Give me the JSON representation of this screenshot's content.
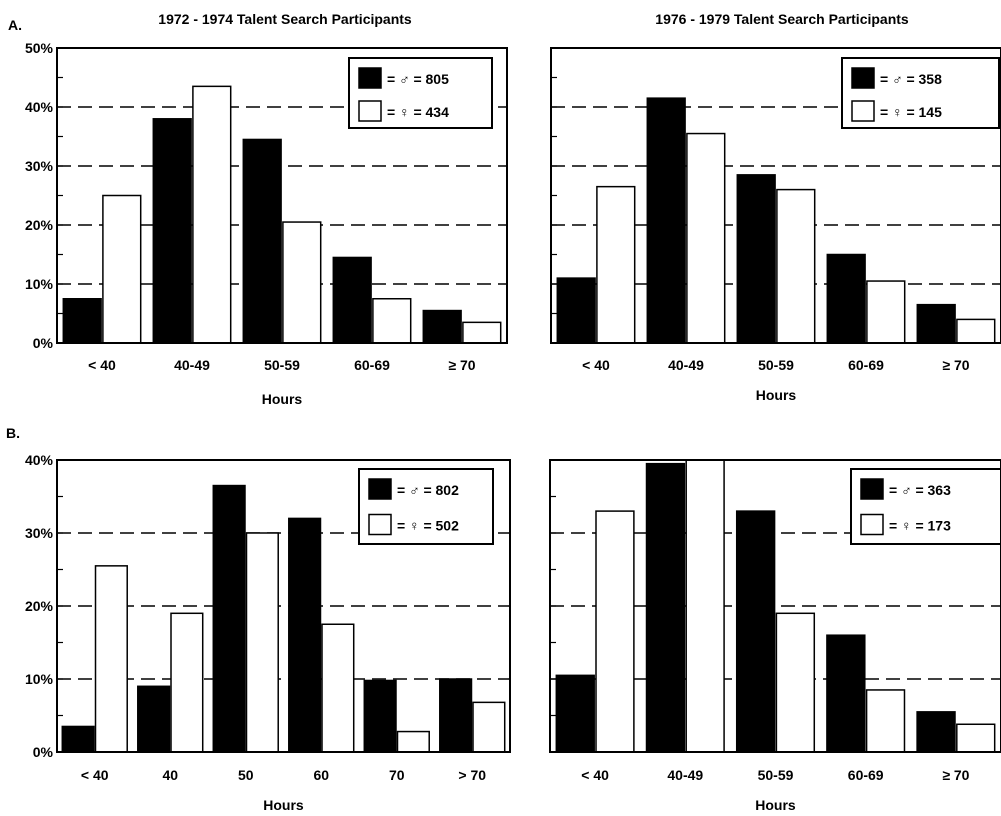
{
  "figure": {
    "panel_labels": [
      "A.",
      "B."
    ]
  },
  "chart_data": [
    {
      "type": "bar",
      "panel": "A.",
      "title": "1972 - 1974 Talent Search Participants",
      "xlabel": "Hours",
      "ylabel": "",
      "ylim": [
        0,
        50
      ],
      "yticks": [
        "0%",
        "10%",
        "20%",
        "30%",
        "40%",
        "50%"
      ],
      "categories": [
        "< 40",
        "40-49",
        "50-59",
        "60-69",
        "≥ 70"
      ],
      "series": [
        {
          "legend": "= ♂ = 805",
          "color": "#000000",
          "values": [
            7.5,
            38,
            34.5,
            14.5,
            5.5
          ]
        },
        {
          "legend": "= ♀ = 434",
          "color": "#ffffff",
          "values": [
            25,
            43.5,
            20.5,
            7.5,
            3.5
          ]
        }
      ],
      "grid": "dashed horizontal",
      "legend_position": "top-right"
    },
    {
      "type": "bar",
      "panel": "A.",
      "title": "1976 - 1979 Talent Search Participants",
      "xlabel": "Hours",
      "ylabel": "",
      "ylim": [
        0,
        50
      ],
      "yticks": [],
      "categories": [
        "< 40",
        "40-49",
        "50-59",
        "60-69",
        "≥ 70"
      ],
      "series": [
        {
          "legend": "= ♂ = 358",
          "color": "#000000",
          "values": [
            11,
            41.5,
            28.5,
            15,
            6.5
          ]
        },
        {
          "legend": "= ♀ = 145",
          "color": "#ffffff",
          "values": [
            26.5,
            35.5,
            26,
            10.5,
            4
          ]
        }
      ],
      "grid": "dashed horizontal",
      "legend_position": "top-right"
    },
    {
      "type": "bar",
      "panel": "B.",
      "title": "",
      "xlabel": "Hours",
      "ylabel": "",
      "ylim": [
        0,
        40
      ],
      "yticks": [
        "0%",
        "10%",
        "20%",
        "30%",
        "40%"
      ],
      "categories": [
        "< 40",
        "40",
        "50",
        "60",
        "70",
        "> 70"
      ],
      "series": [
        {
          "legend": "= ♂ = 802",
          "color": "#000000",
          "values": [
            3.5,
            9,
            36.5,
            32,
            9.8,
            10
          ]
        },
        {
          "legend": "= ♀ = 502",
          "color": "#ffffff",
          "values": [
            25.5,
            19,
            30,
            17.5,
            2.8,
            6.8
          ]
        }
      ],
      "grid": "dashed horizontal",
      "legend_position": "top-right"
    },
    {
      "type": "bar",
      "panel": "B.",
      "title": "",
      "xlabel": "Hours",
      "ylabel": "",
      "ylim": [
        0,
        40
      ],
      "yticks": [],
      "categories": [
        "< 40",
        "40-49",
        "50-59",
        "60-69",
        "≥ 70"
      ],
      "series": [
        {
          "legend": "= ♂ = 363",
          "color": "#000000",
          "values": [
            10.5,
            39.5,
            33,
            16,
            5.5
          ]
        },
        {
          "legend": "= ♀ = 173",
          "color": "#ffffff",
          "values": [
            33,
            40,
            19,
            8.5,
            3.8
          ]
        }
      ],
      "grid": "dashed horizontal",
      "legend_position": "top-right"
    }
  ]
}
